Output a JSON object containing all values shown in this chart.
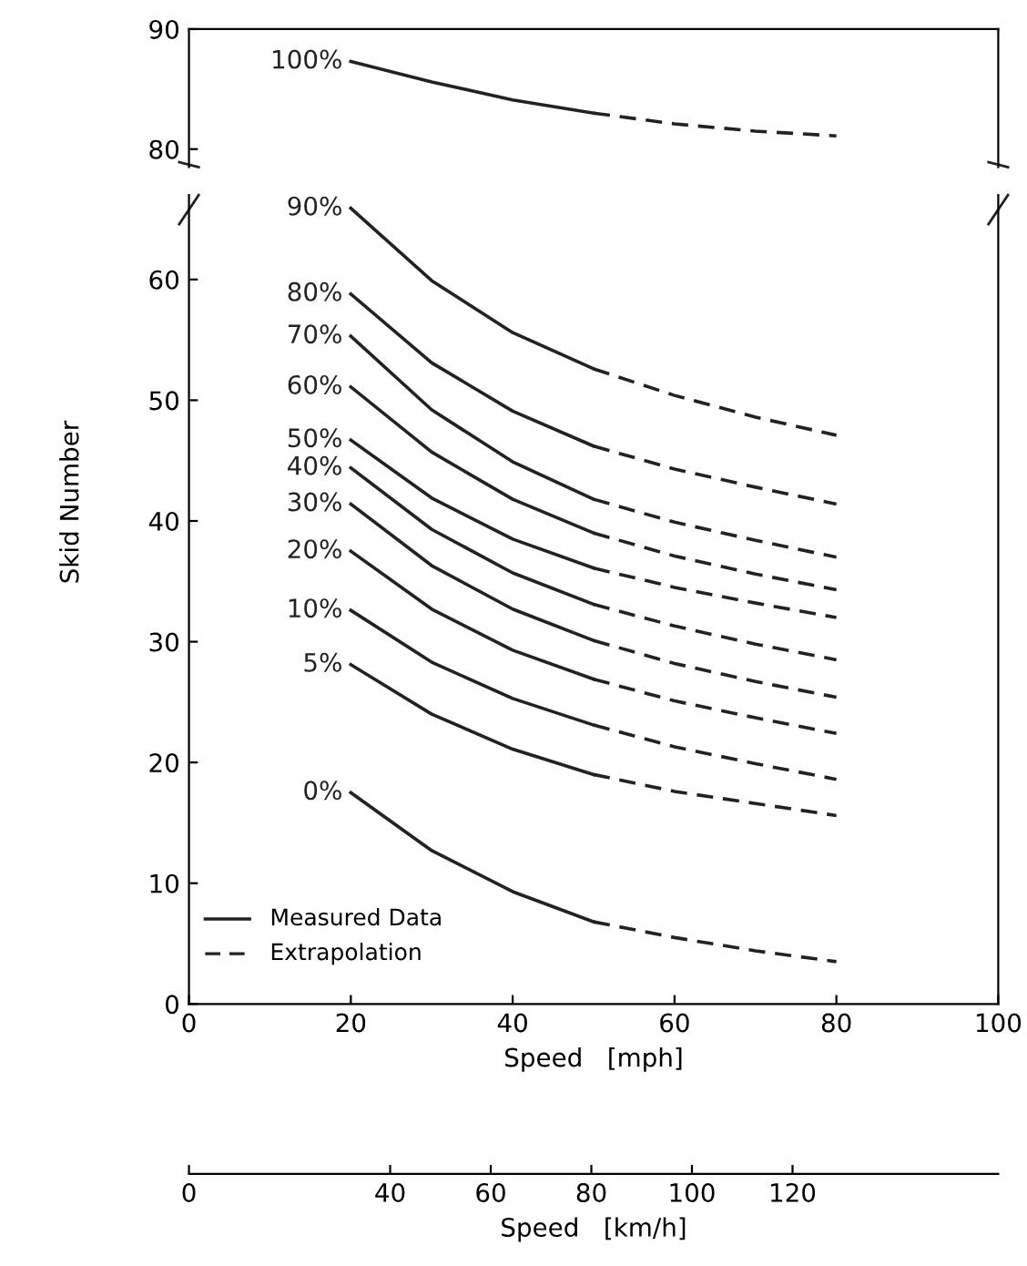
{
  "chart_data": [
    {
      "type": "line",
      "xlim": [
        0,
        100
      ],
      "ylim": [
        78.5,
        90
      ],
      "yticks": [
        80,
        90
      ],
      "tick_labels": "y",
      "grid": false,
      "series": [
        {
          "name": "100%",
          "color": "#222222",
          "line_style": "solid",
          "x": [
            20,
            30,
            40,
            50
          ],
          "values": [
            87.3,
            85.6,
            84.1,
            83.0
          ]
        },
        {
          "color": "#222222",
          "line_style": "dashed",
          "x": [
            50,
            60,
            70,
            80
          ],
          "values": [
            83.0,
            82.1,
            81.5,
            81.1
          ]
        }
      ]
    },
    {
      "type": "line",
      "xlim": [
        0,
        100
      ],
      "xticks": [
        0,
        20,
        40,
        60,
        80,
        100
      ],
      "ylim": [
        0,
        67
      ],
      "yticks": [
        0,
        10,
        20,
        30,
        40,
        50,
        60
      ],
      "xlabel": "Speed   [mph]",
      "ylabel": "Skid Number",
      "x2lim": [
        0,
        160.9
      ],
      "x2ticks": [
        0,
        40,
        60,
        80,
        100,
        120
      ],
      "x2label": "Speed   [km/h]",
      "grid": false,
      "annotations": [
        "Measured Data",
        "Extrapolation"
      ],
      "series": [
        {
          "name": "90%",
          "color": "#222222",
          "line_style": "solid",
          "x": [
            20,
            30,
            40,
            50
          ],
          "values": [
            65.9,
            59.9,
            55.6,
            52.6
          ]
        },
        {
          "color": "#222222",
          "line_style": "dashed",
          "x": [
            50,
            60,
            70,
            80
          ],
          "values": [
            52.6,
            50.4,
            48.6,
            47.1
          ]
        },
        {
          "name": "80%",
          "color": "#222222",
          "line_style": "solid",
          "x": [
            20,
            30,
            40,
            50
          ],
          "values": [
            58.8,
            53.1,
            49.1,
            46.2
          ]
        },
        {
          "color": "#222222",
          "line_style": "dashed",
          "x": [
            50,
            60,
            70,
            80
          ],
          "values": [
            46.2,
            44.3,
            42.8,
            41.4
          ]
        },
        {
          "name": "70%",
          "color": "#222222",
          "line_style": "solid",
          "x": [
            20,
            30,
            40,
            50
          ],
          "values": [
            55.3,
            49.2,
            44.9,
            41.8
          ]
        },
        {
          "color": "#222222",
          "line_style": "dashed",
          "x": [
            50,
            60,
            70,
            80
          ],
          "values": [
            41.8,
            39.9,
            38.4,
            37.0
          ]
        },
        {
          "name": "60%",
          "color": "#222222",
          "line_style": "solid",
          "x": [
            20,
            30,
            40,
            50
          ],
          "values": [
            51.1,
            45.7,
            41.8,
            39.0
          ]
        },
        {
          "color": "#222222",
          "line_style": "dashed",
          "x": [
            50,
            60,
            70,
            80
          ],
          "values": [
            39.0,
            37.1,
            35.6,
            34.3
          ]
        },
        {
          "name": "50%",
          "color": "#222222",
          "line_style": "solid",
          "x": [
            20,
            30,
            40,
            50
          ],
          "values": [
            46.7,
            41.9,
            38.5,
            36.1
          ]
        },
        {
          "color": "#222222",
          "line_style": "dashed",
          "x": [
            50,
            60,
            70,
            80
          ],
          "values": [
            36.1,
            34.5,
            33.2,
            32.0
          ]
        },
        {
          "name": "40%",
          "color": "#222222",
          "line_style": "solid",
          "x": [
            20,
            30,
            40,
            50
          ],
          "values": [
            44.4,
            39.3,
            35.7,
            33.1
          ]
        },
        {
          "color": "#222222",
          "line_style": "dashed",
          "x": [
            50,
            60,
            70,
            80
          ],
          "values": [
            33.1,
            31.3,
            29.8,
            28.5
          ]
        },
        {
          "name": "30%",
          "color": "#222222",
          "line_style": "solid",
          "x": [
            20,
            30,
            40,
            50
          ],
          "values": [
            41.4,
            36.3,
            32.7,
            30.1
          ]
        },
        {
          "color": "#222222",
          "line_style": "dashed",
          "x": [
            50,
            60,
            70,
            80
          ],
          "values": [
            30.1,
            28.2,
            26.7,
            25.4
          ]
        },
        {
          "name": "20%",
          "color": "#222222",
          "line_style": "solid",
          "x": [
            20,
            30,
            40,
            50
          ],
          "values": [
            37.5,
            32.7,
            29.3,
            26.9
          ]
        },
        {
          "color": "#222222",
          "line_style": "dashed",
          "x": [
            50,
            60,
            70,
            80
          ],
          "values": [
            26.9,
            25.1,
            23.7,
            22.4
          ]
        },
        {
          "name": "10%",
          "color": "#222222",
          "line_style": "solid",
          "x": [
            20,
            30,
            40,
            50
          ],
          "values": [
            32.6,
            28.3,
            25.3,
            23.1
          ]
        },
        {
          "color": "#222222",
          "line_style": "dashed",
          "x": [
            50,
            60,
            70,
            80
          ],
          "values": [
            23.1,
            21.3,
            19.9,
            18.6
          ]
        },
        {
          "name": "5%",
          "color": "#222222",
          "line_style": "solid",
          "x": [
            20,
            30,
            40,
            50
          ],
          "values": [
            28.1,
            24.0,
            21.1,
            19.0
          ]
        },
        {
          "color": "#222222",
          "line_style": "dashed",
          "x": [
            50,
            60,
            70,
            80
          ],
          "values": [
            19.0,
            17.6,
            16.6,
            15.6
          ]
        },
        {
          "name": "0%",
          "color": "#222222",
          "line_style": "solid",
          "x": [
            20,
            30,
            40,
            50
          ],
          "values": [
            17.5,
            12.7,
            9.3,
            6.8
          ]
        },
        {
          "color": "#222222",
          "line_style": "dashed",
          "x": [
            50,
            60,
            70,
            80
          ],
          "values": [
            6.8,
            5.5,
            4.4,
            3.5
          ]
        }
      ]
    }
  ]
}
